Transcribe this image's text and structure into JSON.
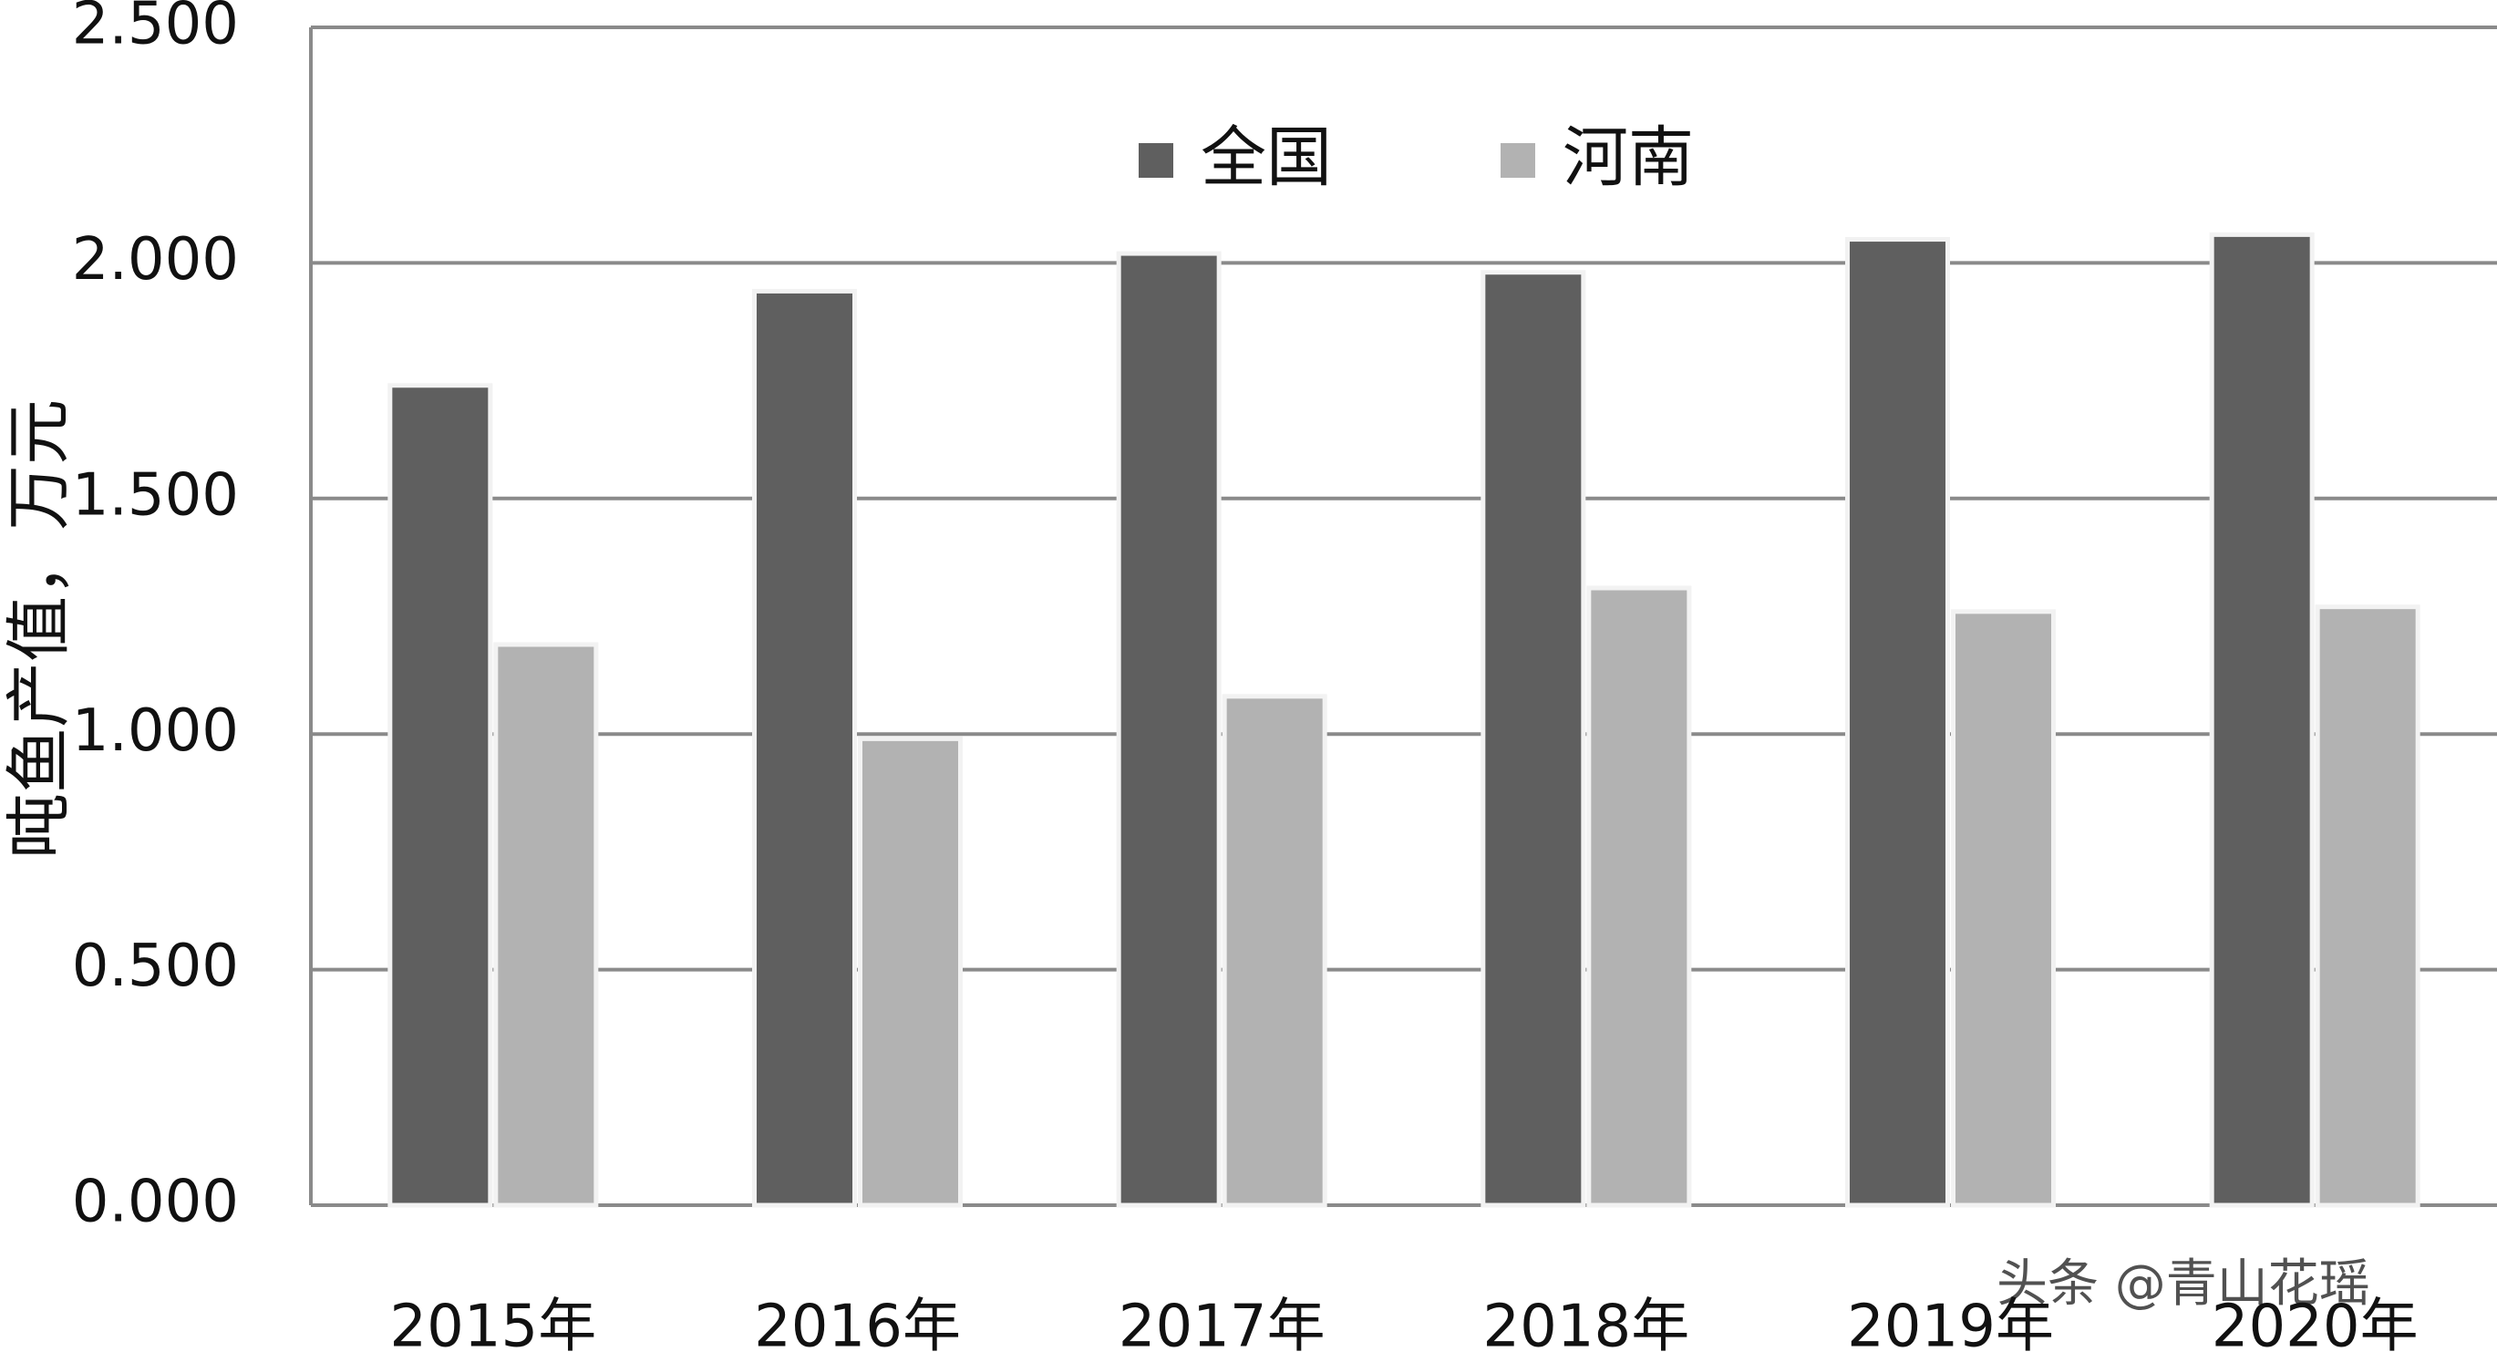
{
  "chart_data": {
    "type": "bar",
    "y_label": "吨鱼产值，万元",
    "categories": [
      "2015年",
      "2016年",
      "2017年",
      "2018年",
      "2019年",
      "2020年"
    ],
    "series": [
      {
        "name": "全国",
        "color": "#5f5f5f",
        "values": [
          1.74,
          1.94,
          2.02,
          1.98,
          2.05,
          2.06
        ]
      },
      {
        "name": "河南",
        "color": "#b2b2b2",
        "values": [
          1.19,
          0.99,
          1.08,
          1.31,
          1.26,
          1.27
        ]
      }
    ],
    "ylim": [
      0,
      2.5
    ],
    "yticks": [
      {
        "value": 0,
        "label": "0.000"
      },
      {
        "value": 0.5,
        "label": "0.500"
      },
      {
        "value": 1,
        "label": "1.000"
      },
      {
        "value": 1.5,
        "label": "1.500"
      },
      {
        "value": 2,
        "label": "2.000"
      },
      {
        "value": 2.5,
        "label": "2.500"
      }
    ],
    "grid": true,
    "watermark": "头条 @青山花瑶"
  }
}
